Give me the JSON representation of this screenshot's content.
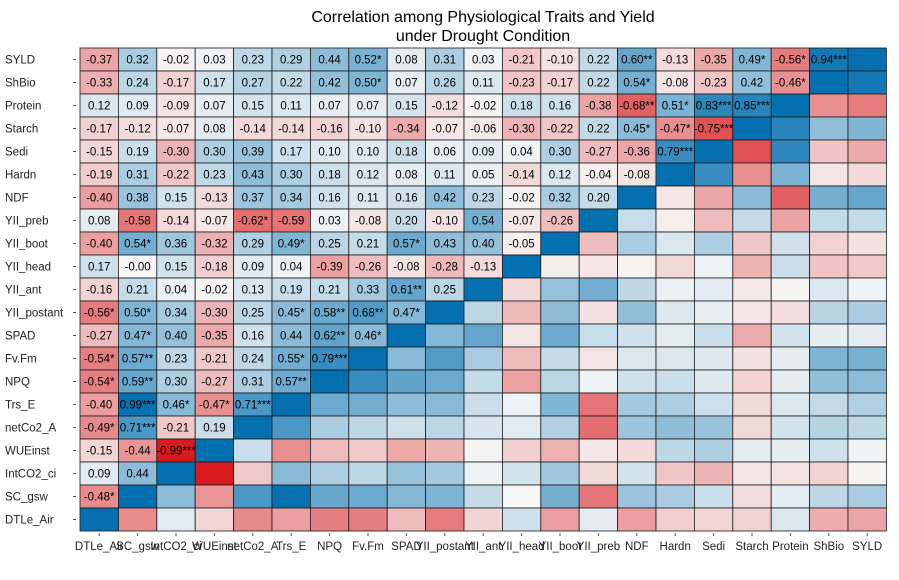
{
  "chart_data": {
    "type": "heatmap",
    "title": [
      "Correlation among Physiological Traits and Yield",
      "under Drought Condition"
    ],
    "variables": [
      "DTLe_Air",
      "SC_gsw",
      "IntCO2_ci",
      "WUEinst",
      "netCo2_A",
      "Trs_E",
      "NPQ",
      "Fv.Fm",
      "SPAD",
      "YII_postant",
      "YII_ant",
      "YII_head",
      "YII_boot",
      "YII_preb",
      "NDF",
      "Hardn",
      "Sedi",
      "Starch",
      "Protein",
      "ShBio",
      "SYLD"
    ],
    "rows_top_to_bottom": [
      "SYLD",
      "ShBio",
      "Protein",
      "Starch",
      "Sedi",
      "Hardn",
      "NDF",
      "YII_preb",
      "YII_boot",
      "YII_head",
      "YII_ant",
      "YII_postant",
      "SPAD",
      "Fv.Fm",
      "NPQ",
      "Trs_E",
      "netCo2_A",
      "WUEinst",
      "IntCO2_ci",
      "SC_gsw",
      "DTLe_Air"
    ],
    "columns_left_to_right": [
      "DTLe_Air",
      "SC_gsw",
      "IntCO2_ci",
      "WUEinst",
      "netCo2_A",
      "Trs_E",
      "NPQ",
      "Fv.Fm",
      "SPAD",
      "YII_postant",
      "YII_ant",
      "YII_head",
      "YII_boot",
      "YII_preb",
      "NDF",
      "Hardn",
      "Sedi",
      "Starch",
      "Protein",
      "ShBio",
      "SYLD"
    ],
    "x_tick_labels": [
      "DTLe_Air",
      "SC_gsw",
      "IntCO2_ci",
      "WUEinst",
      "netCo2_A",
      "Trs_E",
      "NPQ",
      "Fv.Fm",
      "SPAD",
      "YII_postant",
      "YII_ant",
      "YII_head",
      "YII_boot",
      "YII_preb",
      "NDF",
      "Hardn",
      "Sedi",
      "Starch",
      "Protein",
      "ShBio",
      "SYLD"
    ],
    "y_tick_labels": [
      "SYLD",
      "ShBio",
      "Protein",
      "Starch",
      "Sedi",
      "Hardn",
      "NDF",
      "YII_preb",
      "YII_boot",
      "YII_head",
      "YII_ant",
      "YII_postant",
      "SPAD",
      "Fv.Fm",
      "NPQ",
      "Trs_E",
      "netCo2_A",
      "WUEinst",
      "IntCO2_ci",
      "SC_gsw",
      "DTLe_Air"
    ],
    "cell_labels": [
      [
        "-0.37",
        "0.32",
        "-0.02",
        "0.03",
        "0.23",
        "0.29",
        "0.44",
        "0.52*",
        "0.08",
        "0.31",
        "0.03",
        "-0.21",
        "-0.10",
        "0.22",
        "0.60**",
        "-0.13",
        "-0.35",
        "0.49*",
        "-0.56*",
        "0.94***"
      ],
      [
        "-0.33",
        "0.24",
        "-0.17",
        "0.17",
        "0.27",
        "0.22",
        "0.42",
        "0.50*",
        "0.07",
        "0.26",
        "0.11",
        "-0.23",
        "-0.17",
        "0.22",
        "0.54*",
        "-0.08",
        "-0.23",
        "0.42",
        "-0.46*"
      ],
      [
        "0.12",
        "0.09",
        "-0.09",
        "0.07",
        "0.15",
        "0.11",
        "0.07",
        "0.07",
        "0.15",
        "-0.12",
        "-0.02",
        "0.18",
        "0.16",
        "-0.38",
        "-0.68**",
        "0.51*",
        "0.83***",
        "0.85***"
      ],
      [
        "-0.17",
        "-0.12",
        "-0.07",
        "0.08",
        "-0.14",
        "-0.14",
        "-0.16",
        "-0.10",
        "-0.34",
        "-0.07",
        "-0.06",
        "-0.30",
        "-0.22",
        "0.22",
        "0.45*",
        "-0.47*",
        "-0.75***"
      ],
      [
        "-0.15",
        "0.19",
        "-0.30",
        "0.30",
        "0.39",
        "0.17",
        "0.10",
        "0.10",
        "0.18",
        "0.06",
        "0.09",
        "0.04",
        "0.30",
        "-0.27",
        "-0.36",
        "0.79***"
      ],
      [
        "-0.19",
        "0.31",
        "-0.22",
        "0.23",
        "0.43",
        "0.30",
        "0.18",
        "0.12",
        "0.08",
        "0.11",
        "0.05",
        "-0.14",
        "0.12",
        "-0.04",
        "-0.08"
      ],
      [
        "-0.40",
        "0.38",
        "0.15",
        "-0.13",
        "0.37",
        "0.34",
        "0.16",
        "0.11",
        "0.16",
        "0.42",
        "0.23",
        "-0.02",
        "0.32",
        "0.20"
      ],
      [
        "0.08",
        "-0.58",
        "-0.14",
        "-0.07",
        "-0.62*",
        "-0.59",
        "0.03",
        "-0.08",
        "0.20",
        "-0.10",
        "0.54",
        "-0.07",
        "-0.26"
      ],
      [
        "-0.40",
        "0.54*",
        "0.36",
        "-0.32",
        "0.29",
        "0.49*",
        "0.25",
        "0.21",
        "0.57*",
        "0.43",
        "0.40",
        "-0.05"
      ],
      [
        "0.17",
        "-0.00",
        "0.15",
        "-0.18",
        "0.09",
        "0.04",
        "-0.39",
        "-0.26",
        "-0.08",
        "-0.28",
        "-0.13"
      ],
      [
        "-0.16",
        "0.21",
        "0.04",
        "-0.02",
        "0.13",
        "0.19",
        "0.21",
        "0.33",
        "0.61**",
        "0.25"
      ],
      [
        "-0.56*",
        "0.50*",
        "0.34",
        "-0.30",
        "0.25",
        "0.45*",
        "0.58**",
        "0.68**",
        "0.47*"
      ],
      [
        "-0.27",
        "0.47*",
        "0.40",
        "-0.35",
        "0.16",
        "0.44",
        "0.62**",
        "0.46*"
      ],
      [
        "-0.54*",
        "0.57**",
        "0.23",
        "-0.21",
        "0.24",
        "0.55*",
        "0.79***"
      ],
      [
        "-0.54*",
        "0.59**",
        "0.30",
        "-0.27",
        "0.31",
        "0.57**"
      ],
      [
        "-0.40",
        "0.99***",
        "0.46*",
        "-0.47*",
        "0.71***"
      ],
      [
        "-0.49*",
        "0.71***",
        "-0.21",
        "0.19"
      ],
      [
        "-0.15",
        "-0.44",
        "-0.99***"
      ],
      [
        "0.09",
        "0.44"
      ],
      [
        "-0.48*"
      ],
      []
    ],
    "diagonal": "cells on the diagonal filled with the +1 colour, no label",
    "lower_triangle": "unlabeled mirror of the upper values, coloured by value",
    "color_scale": {
      "negative": "#d7191c",
      "zero": "#f7f7f7",
      "positive": "#0570b0"
    },
    "scale_range": [
      -1,
      1
    ],
    "legend": "none",
    "grid": true,
    "significance_marks": "* p<0.05, ** p<0.01, *** p<0.001 as printed in cells"
  }
}
